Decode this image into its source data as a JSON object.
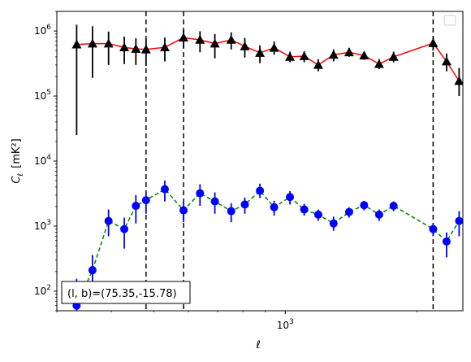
{
  "chart_data": {
    "type": "scatter",
    "title": "",
    "xlabel": "ℓ",
    "ylabel_main": "C",
    "ylabel_sub": "ℓ",
    "ylabel_unit": "[mK²]",
    "xscale": "log",
    "yscale": "log",
    "xlim": [
      300,
      2550
    ],
    "ylim": [
      50,
      2000000
    ],
    "xticks": [
      {
        "value": 1000,
        "base": "10",
        "exp": "3"
      }
    ],
    "yticks": [
      {
        "value": 100,
        "base": "10",
        "exp": "2"
      },
      {
        "value": 1000,
        "base": "10",
        "exp": "3"
      },
      {
        "value": 10000,
        "base": "10",
        "exp": "4"
      },
      {
        "value": 100000,
        "base": "10",
        "exp": "5"
      },
      {
        "value": 1000000,
        "base": "10",
        "exp": "6"
      }
    ],
    "vlines": [
      480,
      585,
      2180
    ],
    "annotation": "(l, b)=(75.35,-15.78)",
    "legend": "upper right, empty",
    "series": [
      {
        "marker": "triangle",
        "color": "#000000",
        "fit_color": "#ff0000",
        "fit_style": "solid",
        "points": [
          {
            "x": 333,
            "y": 620000,
            "lo": 25000,
            "hi": 1250000
          },
          {
            "x": 362,
            "y": 640000,
            "lo": 190000,
            "hi": 1180000
          },
          {
            "x": 394,
            "y": 640000,
            "lo": 300000,
            "hi": 980000
          },
          {
            "x": 428,
            "y": 560000,
            "lo": 310000,
            "hi": 820000
          },
          {
            "x": 455,
            "y": 530000,
            "lo": 300000,
            "hi": 770000
          },
          {
            "x": 480,
            "y": 520000,
            "lo": 290000,
            "hi": 760000
          },
          {
            "x": 530,
            "y": 560000,
            "lo": 340000,
            "hi": 790000
          },
          {
            "x": 585,
            "y": 790000,
            "lo": 550000,
            "hi": 1040000
          },
          {
            "x": 638,
            "y": 730000,
            "lo": 470000,
            "hi": 990000
          },
          {
            "x": 690,
            "y": 640000,
            "lo": 380000,
            "hi": 900000
          },
          {
            "x": 752,
            "y": 730000,
            "lo": 520000,
            "hi": 950000
          },
          {
            "x": 808,
            "y": 580000,
            "lo": 390000,
            "hi": 780000
          },
          {
            "x": 875,
            "y": 460000,
            "lo": 320000,
            "hi": 600000
          },
          {
            "x": 943,
            "y": 550000,
            "lo": 430000,
            "hi": 690000
          },
          {
            "x": 1025,
            "y": 400000,
            "lo": 330000,
            "hi": 480000
          },
          {
            "x": 1105,
            "y": 410000,
            "lo": 330000,
            "hi": 490000
          },
          {
            "x": 1190,
            "y": 300000,
            "lo": 240000,
            "hi": 370000
          },
          {
            "x": 1290,
            "y": 430000,
            "lo": 340000,
            "hi": 520000
          },
          {
            "x": 1400,
            "y": 470000,
            "lo": 400000,
            "hi": 550000
          },
          {
            "x": 1515,
            "y": 420000,
            "lo": 360000,
            "hi": 480000
          },
          {
            "x": 1640,
            "y": 310000,
            "lo": 260000,
            "hi": 370000
          },
          {
            "x": 1770,
            "y": 400000,
            "lo": 330000,
            "hi": 480000
          },
          {
            "x": 2180,
            "y": 650000,
            "lo": 500000,
            "hi": 800000
          },
          {
            "x": 2340,
            "y": 340000,
            "lo": 240000,
            "hi": 450000
          },
          {
            "x": 2500,
            "y": 170000,
            "lo": 100000,
            "hi": 270000
          }
        ]
      },
      {
        "marker": "circle",
        "color": "#0000ff",
        "fit_color": "#008000",
        "fit_style": "dashed",
        "points": [
          {
            "x": 333,
            "y": 60,
            "lo": 25,
            "hi": 155
          },
          {
            "x": 362,
            "y": 210,
            "lo": 80,
            "hi": 360
          },
          {
            "x": 394,
            "y": 1200,
            "lo": 700,
            "hi": 1800
          },
          {
            "x": 428,
            "y": 900,
            "lo": 450,
            "hi": 1350
          },
          {
            "x": 455,
            "y": 2050,
            "lo": 1100,
            "hi": 3000
          },
          {
            "x": 480,
            "y": 2500,
            "lo": 1550,
            "hi": 3500
          },
          {
            "x": 530,
            "y": 3700,
            "lo": 2400,
            "hi": 5000
          },
          {
            "x": 585,
            "y": 1750,
            "lo": 1150,
            "hi": 2350
          },
          {
            "x": 638,
            "y": 3200,
            "lo": 2050,
            "hi": 4400
          },
          {
            "x": 690,
            "y": 2400,
            "lo": 1550,
            "hi": 3300
          },
          {
            "x": 752,
            "y": 1700,
            "lo": 1150,
            "hi": 2250
          },
          {
            "x": 808,
            "y": 2150,
            "lo": 1550,
            "hi": 2750
          },
          {
            "x": 875,
            "y": 3500,
            "lo": 2700,
            "hi": 4500
          },
          {
            "x": 943,
            "y": 1950,
            "lo": 1450,
            "hi": 2450
          },
          {
            "x": 1025,
            "y": 2800,
            "lo": 2150,
            "hi": 3450
          },
          {
            "x": 1105,
            "y": 1800,
            "lo": 1450,
            "hi": 2200
          },
          {
            "x": 1190,
            "y": 1500,
            "lo": 1200,
            "hi": 1800
          },
          {
            "x": 1290,
            "y": 1100,
            "lo": 850,
            "hi": 1400
          },
          {
            "x": 1400,
            "y": 1650,
            "lo": 1350,
            "hi": 1950
          },
          {
            "x": 1515,
            "y": 2100,
            "lo": 1750,
            "hi": 2450
          },
          {
            "x": 1640,
            "y": 1500,
            "lo": 1200,
            "hi": 1800
          },
          {
            "x": 1770,
            "y": 2050,
            "lo": 1700,
            "hi": 2400
          },
          {
            "x": 2180,
            "y": 900,
            "lo": 700,
            "hi": 1120
          },
          {
            "x": 2340,
            "y": 580,
            "lo": 330,
            "hi": 800
          },
          {
            "x": 2500,
            "y": 1200,
            "lo": 700,
            "hi": 1700
          }
        ]
      }
    ]
  }
}
